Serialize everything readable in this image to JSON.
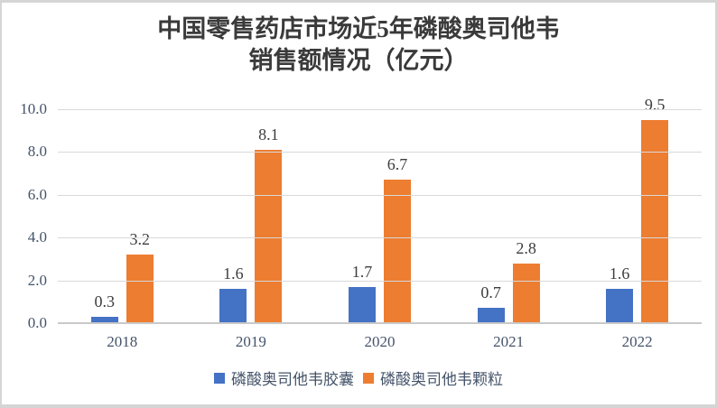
{
  "title": {
    "line1": "中国零售药店市场近5年磷酸奥司他韦",
    "line2": "销售额情况（亿元）"
  },
  "chart_data": {
    "type": "bar",
    "title": "中国零售药店市场近5年磷酸奥司他韦销售额情况（亿元）",
    "categories": [
      "2018",
      "2019",
      "2020",
      "2021",
      "2022"
    ],
    "series": [
      {
        "name": "磷酸奥司他韦胶囊",
        "color": "#4472c4",
        "values": [
          0.3,
          1.6,
          1.7,
          0.7,
          1.6
        ]
      },
      {
        "name": "磷酸奥司他韦颗粒",
        "color": "#ed7d31",
        "values": [
          3.2,
          8.1,
          6.7,
          2.8,
          9.5
        ]
      }
    ],
    "xlabel": "",
    "ylabel": "",
    "ylim": [
      0,
      10
    ],
    "yticks": [
      0,
      2,
      4,
      6,
      8,
      10
    ],
    "ytick_labels": [
      "0.0",
      "2.0",
      "4.0",
      "6.0",
      "8.0",
      "10.0"
    ],
    "grid": true,
    "data_labels": true,
    "data_label_format": "one_decimal",
    "legend_position": "bottom"
  }
}
